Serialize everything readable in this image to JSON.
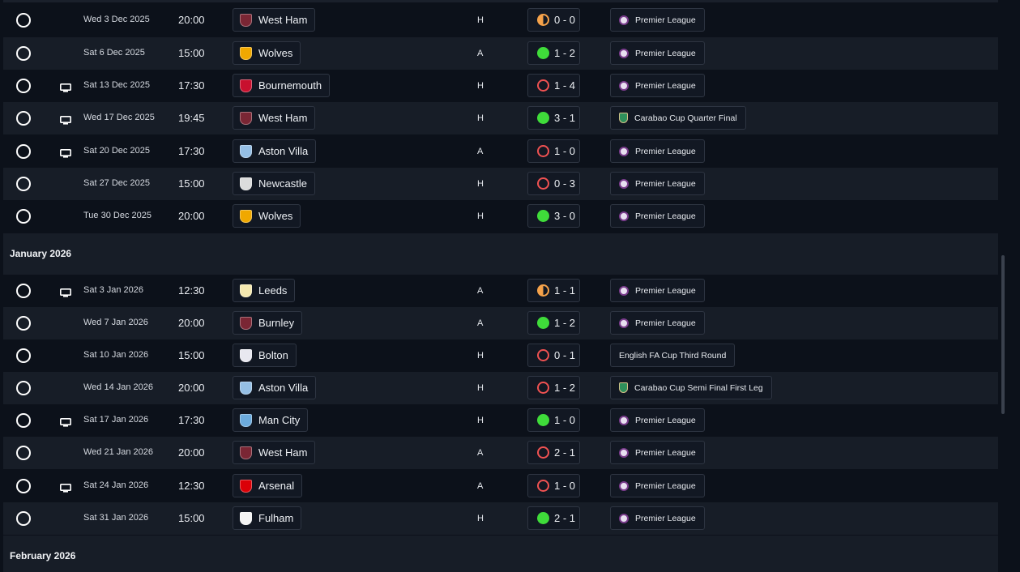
{
  "months": {
    "january": "January 2026",
    "february": "February 2026"
  },
  "colors": {
    "win": "#3fdc3a",
    "loss": "#f05252",
    "draw": "#f5a24a"
  },
  "rows": [
    {
      "tv": false,
      "date": "Wed 3 Dec 2025",
      "time": "20:00",
      "team": "West Ham",
      "crest": "#7a2634",
      "venue": "H",
      "outcome": "D",
      "score": "0 - 0",
      "comp": "Premier League",
      "comp_icon": "premier-league-icon"
    },
    {
      "tv": false,
      "date": "Sat 6 Dec 2025",
      "time": "15:00",
      "team": "Wolves",
      "crest": "#f0a800",
      "venue": "A",
      "outcome": "W",
      "score": "1 - 2",
      "comp": "Premier League",
      "comp_icon": "premier-league-icon"
    },
    {
      "tv": true,
      "date": "Sat 13 Dec 2025",
      "time": "17:30",
      "team": "Bournemouth",
      "crest": "#c8102e",
      "venue": "H",
      "outcome": "L",
      "score": "1 - 4",
      "comp": "Premier League",
      "comp_icon": "premier-league-icon"
    },
    {
      "tv": true,
      "date": "Wed 17 Dec 2025",
      "time": "19:45",
      "team": "West Ham",
      "crest": "#7a2634",
      "venue": "H",
      "outcome": "W",
      "score": "3 - 1",
      "comp": "Carabao Cup Quarter Final",
      "comp_icon": "carabao-cup-icon"
    },
    {
      "tv": true,
      "date": "Sat 20 Dec 2025",
      "time": "17:30",
      "team": "Aston Villa",
      "crest": "#95bfe5",
      "venue": "A",
      "outcome": "L",
      "score": "1 - 0",
      "comp": "Premier League",
      "comp_icon": "premier-league-icon"
    },
    {
      "tv": false,
      "date": "Sat 27 Dec 2025",
      "time": "15:00",
      "team": "Newcastle",
      "crest": "#dcdcdc",
      "venue": "H",
      "outcome": "L",
      "score": "0 - 3",
      "comp": "Premier League",
      "comp_icon": "premier-league-icon"
    },
    {
      "tv": false,
      "date": "Tue 30 Dec 2025",
      "time": "20:00",
      "team": "Wolves",
      "crest": "#f0a800",
      "venue": "H",
      "outcome": "W",
      "score": "3 - 0",
      "comp": "Premier League",
      "comp_icon": "premier-league-icon"
    },
    {
      "tv": true,
      "date": "Sat 3 Jan 2026",
      "time": "12:30",
      "team": "Leeds",
      "crest": "#f5e9b0",
      "venue": "A",
      "outcome": "D",
      "score": "1 - 1",
      "comp": "Premier League",
      "comp_icon": "premier-league-icon"
    },
    {
      "tv": false,
      "date": "Wed 7 Jan 2026",
      "time": "20:00",
      "team": "Burnley",
      "crest": "#7a2634",
      "venue": "A",
      "outcome": "W",
      "score": "1 - 2",
      "comp": "Premier League",
      "comp_icon": "premier-league-icon"
    },
    {
      "tv": false,
      "date": "Sat 10 Jan 2026",
      "time": "15:00",
      "team": "Bolton",
      "crest": "#e8e8f0",
      "venue": "H",
      "outcome": "L",
      "score": "0 - 1",
      "comp": "English FA Cup Third Round",
      "comp_icon": ""
    },
    {
      "tv": false,
      "date": "Wed 14 Jan 2026",
      "time": "20:00",
      "team": "Aston Villa",
      "crest": "#95bfe5",
      "venue": "H",
      "outcome": "L",
      "score": "1 - 2",
      "comp": "Carabao Cup Semi Final First Leg",
      "comp_icon": "carabao-cup-icon"
    },
    {
      "tv": true,
      "date": "Sat 17 Jan 2026",
      "time": "17:30",
      "team": "Man City",
      "crest": "#6cabdd",
      "venue": "H",
      "outcome": "W",
      "score": "1 - 0",
      "comp": "Premier League",
      "comp_icon": "premier-league-icon"
    },
    {
      "tv": false,
      "date": "Wed 21 Jan 2026",
      "time": "20:00",
      "team": "West Ham",
      "crest": "#7a2634",
      "venue": "A",
      "outcome": "L",
      "score": "2 - 1",
      "comp": "Premier League",
      "comp_icon": "premier-league-icon"
    },
    {
      "tv": true,
      "date": "Sat 24 Jan 2026",
      "time": "12:30",
      "team": "Arsenal",
      "crest": "#db0007",
      "venue": "A",
      "outcome": "L",
      "score": "1 - 0",
      "comp": "Premier League",
      "comp_icon": "premier-league-icon"
    },
    {
      "tv": false,
      "date": "Sat 31 Jan 2026",
      "time": "15:00",
      "team": "Fulham",
      "crest": "#f4f4f4",
      "venue": "H",
      "outcome": "W",
      "score": "2 - 1",
      "comp": "Premier League",
      "comp_icon": "premier-league-icon"
    }
  ]
}
